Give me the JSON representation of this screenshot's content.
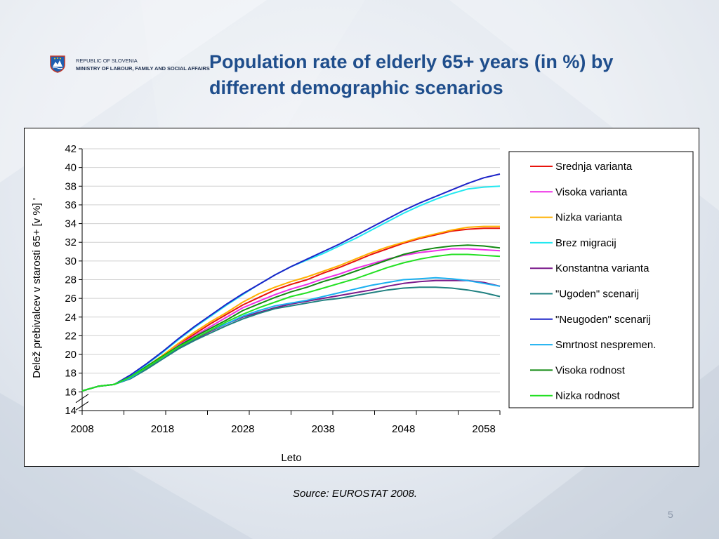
{
  "header": {
    "republic": "REPUBLIC OF SLOVENIA",
    "ministry": "MINISTRY OF LABOUR, FAMILY AND SOCIAL AFFAIRS",
    "title": "Population rate of elderly 65+ years (in %) by different demographic scenarios"
  },
  "footer": {
    "source": "Source: EUROSTAT 2008.",
    "page_number": "5"
  },
  "chart_data": {
    "type": "line",
    "title": "",
    "xlabel": "Leto",
    "ylabel": "Delež prebivalcev v starosti 65+ [v %] '",
    "xlim": [
      2008,
      2060
    ],
    "ylim": [
      14,
      42
    ],
    "y_ticks": [
      14,
      16,
      18,
      20,
      22,
      24,
      26,
      28,
      30,
      32,
      34,
      36,
      38,
      40,
      42
    ],
    "x_tick_labels": [
      "2008",
      "2018",
      "2028",
      "2038",
      "2048",
      "2058"
    ],
    "x_tick_label_values": [
      2008,
      2018,
      2028,
      2038,
      2048,
      2058
    ],
    "axis_break": true,
    "grid": true,
    "legend_position": "right",
    "x": [
      2008,
      2010,
      2012,
      2014,
      2016,
      2018,
      2020,
      2022,
      2024,
      2026,
      2028,
      2030,
      2032,
      2034,
      2036,
      2038,
      2040,
      2042,
      2044,
      2046,
      2048,
      2050,
      2052,
      2054,
      2056,
      2058,
      2060
    ],
    "series": [
      {
        "name": "Srednja varianta",
        "color": "#e8140c",
        "values": [
          16.1,
          16.6,
          16.8,
          17.6,
          18.7,
          19.8,
          21.1,
          22.2,
          23.3,
          24.3,
          25.3,
          26.1,
          26.9,
          27.5,
          28.0,
          28.7,
          29.3,
          30.0,
          30.7,
          31.3,
          31.9,
          32.4,
          32.8,
          33.2,
          33.4,
          33.5,
          33.5
        ]
      },
      {
        "name": "Visoka varianta",
        "color": "#ee2ee6",
        "values": [
          16.1,
          16.6,
          16.8,
          17.6,
          18.7,
          19.8,
          21.0,
          22.0,
          23.0,
          24.0,
          25.0,
          25.7,
          26.4,
          27.0,
          27.5,
          28.1,
          28.6,
          29.2,
          29.7,
          30.2,
          30.6,
          30.9,
          31.1,
          31.3,
          31.3,
          31.2,
          31.1
        ]
      },
      {
        "name": "Nizka varianta",
        "color": "#ffb000",
        "values": [
          16.1,
          16.6,
          16.8,
          17.6,
          18.7,
          19.9,
          21.2,
          22.4,
          23.5,
          24.5,
          25.6,
          26.5,
          27.2,
          27.8,
          28.3,
          28.9,
          29.5,
          30.2,
          30.9,
          31.5,
          32.0,
          32.5,
          32.9,
          33.3,
          33.6,
          33.7,
          33.7
        ]
      },
      {
        "name": "Brez migracij",
        "color": "#22e8f0",
        "values": [
          16.1,
          16.6,
          16.8,
          17.7,
          18.9,
          20.2,
          21.6,
          22.9,
          24.1,
          25.3,
          26.4,
          27.5,
          28.5,
          29.4,
          30.1,
          30.8,
          31.6,
          32.4,
          33.3,
          34.2,
          35.1,
          35.9,
          36.6,
          37.2,
          37.7,
          37.9,
          38.0
        ]
      },
      {
        "name": "Konstantna varianta",
        "color": "#7a1a8c",
        "values": [
          16.1,
          16.6,
          16.8,
          17.5,
          18.5,
          19.7,
          20.7,
          21.6,
          22.5,
          23.3,
          24.0,
          24.5,
          25.0,
          25.4,
          25.7,
          26.0,
          26.3,
          26.6,
          26.9,
          27.3,
          27.6,
          27.8,
          27.9,
          27.9,
          27.9,
          27.7,
          27.3
        ]
      },
      {
        "name": "\"Ugoden\" scenarij",
        "color": "#1f8080",
        "values": [
          16.1,
          16.6,
          16.8,
          17.4,
          18.4,
          19.5,
          20.6,
          21.5,
          22.3,
          23.1,
          23.8,
          24.4,
          24.9,
          25.2,
          25.5,
          25.8,
          26.0,
          26.3,
          26.6,
          26.9,
          27.1,
          27.2,
          27.2,
          27.1,
          26.9,
          26.6,
          26.2
        ]
      },
      {
        "name": "\"Neugoden\" scenarij",
        "color": "#1c23c8",
        "values": [
          16.1,
          16.6,
          16.8,
          17.8,
          19.0,
          20.3,
          21.7,
          23.0,
          24.2,
          25.4,
          26.5,
          27.5,
          28.5,
          29.4,
          30.2,
          31.0,
          31.8,
          32.7,
          33.6,
          34.5,
          35.4,
          36.2,
          36.9,
          37.6,
          38.3,
          38.9,
          39.3
        ]
      },
      {
        "name": "Smrtnost nespremen.",
        "color": "#1ab0f0",
        "values": [
          16.1,
          16.6,
          16.8,
          17.5,
          18.6,
          19.7,
          20.8,
          21.7,
          22.6,
          23.3,
          24.1,
          24.7,
          25.2,
          25.5,
          25.8,
          26.2,
          26.6,
          27.0,
          27.4,
          27.7,
          28.0,
          28.1,
          28.2,
          28.1,
          27.9,
          27.6,
          27.3
        ]
      },
      {
        "name": "Visoka rodnost",
        "color": "#138a13",
        "values": [
          16.1,
          16.6,
          16.8,
          17.6,
          18.7,
          19.8,
          20.9,
          21.9,
          22.8,
          23.7,
          24.7,
          25.4,
          26.1,
          26.7,
          27.2,
          27.8,
          28.3,
          28.9,
          29.5,
          30.1,
          30.7,
          31.1,
          31.4,
          31.6,
          31.7,
          31.6,
          31.4
        ]
      },
      {
        "name": "Nizka rodnost",
        "color": "#22e022",
        "values": [
          16.1,
          16.6,
          16.8,
          17.6,
          18.6,
          19.7,
          20.8,
          21.7,
          22.6,
          23.5,
          24.3,
          25.0,
          25.6,
          26.2,
          26.6,
          27.1,
          27.6,
          28.1,
          28.7,
          29.3,
          29.8,
          30.2,
          30.5,
          30.7,
          30.7,
          30.6,
          30.5
        ]
      }
    ]
  }
}
